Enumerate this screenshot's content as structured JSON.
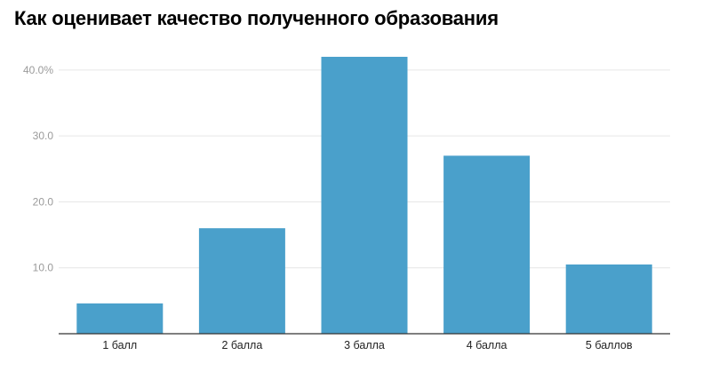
{
  "chart_data": {
    "type": "bar",
    "title": "Как оценивает качество полученного образования",
    "categories": [
      "1 балл",
      "2 балла",
      "3 балла",
      "4 балла",
      "5 баллов"
    ],
    "values": [
      4.6,
      16.0,
      42.0,
      27.0,
      10.5
    ],
    "xlabel": "",
    "ylabel": "",
    "ylim": [
      0,
      42
    ],
    "yticks": [
      10,
      20,
      30,
      40
    ],
    "ytick_labels": [
      "10.0",
      "20.0",
      "30.0",
      "40.0%"
    ],
    "grid": true,
    "legend": "none",
    "colors": {
      "bar": "#4aa0cb",
      "grid": "#e6e6e6",
      "axis": "#333333",
      "tick_text": "#9a9a9a",
      "category_text": "#222222"
    }
  }
}
